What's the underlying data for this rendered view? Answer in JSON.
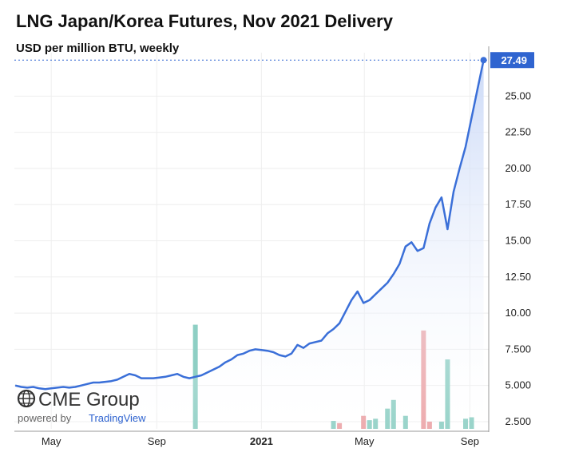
{
  "title": "LNG Japan/Korea Futures, Nov 2021 Delivery",
  "subtitle": "USD per million BTU, weekly",
  "branding": {
    "logo": "CME Group",
    "powered_by": "powered by",
    "platform": "TradingView"
  },
  "colors": {
    "line": "#3a6fd8",
    "area_top": "#c9d8f7",
    "volume_up": "#8ecfc4",
    "volume_down": "#eba3a6",
    "last_price_bg": "#2f64d0"
  },
  "chart_data": {
    "type": "area",
    "title": "LNG Japan/Korea Futures, Nov 2021 Delivery",
    "subtitle": "USD per million BTU, weekly",
    "ylim": [
      2.0,
      28.0
    ],
    "y_ticks": [
      "2.500",
      "5.000",
      "7.500",
      "10.00",
      "12.50",
      "15.00",
      "17.50",
      "20.00",
      "22.50",
      "25.00"
    ],
    "x_ticks": [
      {
        "label": "May",
        "date": "2020-05-01",
        "bold": false
      },
      {
        "label": "Sep",
        "date": "2020-09-01",
        "bold": false
      },
      {
        "label": "2021",
        "date": "2021-01-01",
        "bold": true
      },
      {
        "label": "May",
        "date": "2021-05-01",
        "bold": false
      },
      {
        "label": "Sep",
        "date": "2021-09-01",
        "bold": false
      }
    ],
    "x_range": [
      "2020-03-19",
      "2021-09-23"
    ],
    "last_price": "27.49",
    "price_series": {
      "dates": [
        "2020-03-20",
        "2020-03-27",
        "2020-04-03",
        "2020-04-10",
        "2020-04-17",
        "2020-04-24",
        "2020-05-01",
        "2020-05-08",
        "2020-05-15",
        "2020-05-22",
        "2020-05-29",
        "2020-06-05",
        "2020-06-12",
        "2020-06-19",
        "2020-06-26",
        "2020-07-03",
        "2020-07-10",
        "2020-07-17",
        "2020-07-24",
        "2020-07-31",
        "2020-08-07",
        "2020-08-14",
        "2020-08-21",
        "2020-08-28",
        "2020-09-04",
        "2020-09-11",
        "2020-09-18",
        "2020-09-25",
        "2020-10-02",
        "2020-10-09",
        "2020-10-16",
        "2020-10-23",
        "2020-10-30",
        "2020-11-06",
        "2020-11-13",
        "2020-11-20",
        "2020-11-27",
        "2020-12-04",
        "2020-12-11",
        "2020-12-18",
        "2020-12-25",
        "2021-01-01",
        "2021-01-08",
        "2021-01-15",
        "2021-01-22",
        "2021-01-29",
        "2021-02-05",
        "2021-02-12",
        "2021-02-19",
        "2021-02-26",
        "2021-03-05",
        "2021-03-12",
        "2021-03-19",
        "2021-03-26",
        "2021-04-02",
        "2021-04-09",
        "2021-04-16",
        "2021-04-23",
        "2021-04-30",
        "2021-05-07",
        "2021-05-14",
        "2021-05-21",
        "2021-05-28",
        "2021-06-04",
        "2021-06-11",
        "2021-06-18",
        "2021-06-25",
        "2021-07-02",
        "2021-07-09",
        "2021-07-16",
        "2021-07-23",
        "2021-07-30",
        "2021-08-06",
        "2021-08-13",
        "2021-08-20",
        "2021-08-27",
        "2021-09-03",
        "2021-09-10",
        "2021-09-17"
      ],
      "values": [
        5.0,
        4.9,
        4.85,
        4.9,
        4.8,
        4.75,
        4.8,
        4.85,
        4.9,
        4.85,
        4.9,
        5.0,
        5.1,
        5.2,
        5.2,
        5.25,
        5.3,
        5.4,
        5.6,
        5.8,
        5.7,
        5.5,
        5.5,
        5.5,
        5.55,
        5.6,
        5.7,
        5.8,
        5.6,
        5.5,
        5.6,
        5.7,
        5.9,
        6.1,
        6.3,
        6.6,
        6.8,
        7.1,
        7.2,
        7.4,
        7.5,
        7.45,
        7.4,
        7.3,
        7.1,
        7.0,
        7.2,
        7.8,
        7.6,
        7.9,
        8.0,
        8.1,
        8.6,
        8.9,
        9.3,
        10.1,
        10.9,
        11.5,
        10.7,
        10.9,
        11.3,
        11.7,
        12.1,
        12.7,
        13.4,
        14.6,
        14.9,
        14.3,
        14.5,
        16.2,
        17.3,
        18.0,
        15.8,
        18.4,
        20.0,
        21.5,
        23.5,
        25.5,
        27.49
      ]
    },
    "volume_series": {
      "label": "volume",
      "bars": [
        {
          "date": "2020-10-16",
          "value": 9.2,
          "direction": "up"
        },
        {
          "date": "2021-03-26",
          "value": 2.55,
          "direction": "up"
        },
        {
          "date": "2021-04-02",
          "value": 2.4,
          "direction": "down"
        },
        {
          "date": "2021-04-30",
          "value": 2.9,
          "direction": "down"
        },
        {
          "date": "2021-05-07",
          "value": 2.6,
          "direction": "up"
        },
        {
          "date": "2021-05-14",
          "value": 2.7,
          "direction": "up"
        },
        {
          "date": "2021-05-28",
          "value": 3.4,
          "direction": "up"
        },
        {
          "date": "2021-06-04",
          "value": 4.0,
          "direction": "up"
        },
        {
          "date": "2021-06-18",
          "value": 2.9,
          "direction": "up"
        },
        {
          "date": "2021-07-09",
          "value": 8.8,
          "direction": "down"
        },
        {
          "date": "2021-07-16",
          "value": 2.5,
          "direction": "down"
        },
        {
          "date": "2021-07-30",
          "value": 2.5,
          "direction": "up"
        },
        {
          "date": "2021-08-06",
          "value": 6.8,
          "direction": "up"
        },
        {
          "date": "2021-08-27",
          "value": 2.7,
          "direction": "up"
        },
        {
          "date": "2021-09-03",
          "value": 2.8,
          "direction": "up"
        }
      ]
    },
    "grid": true,
    "legend": "none"
  }
}
